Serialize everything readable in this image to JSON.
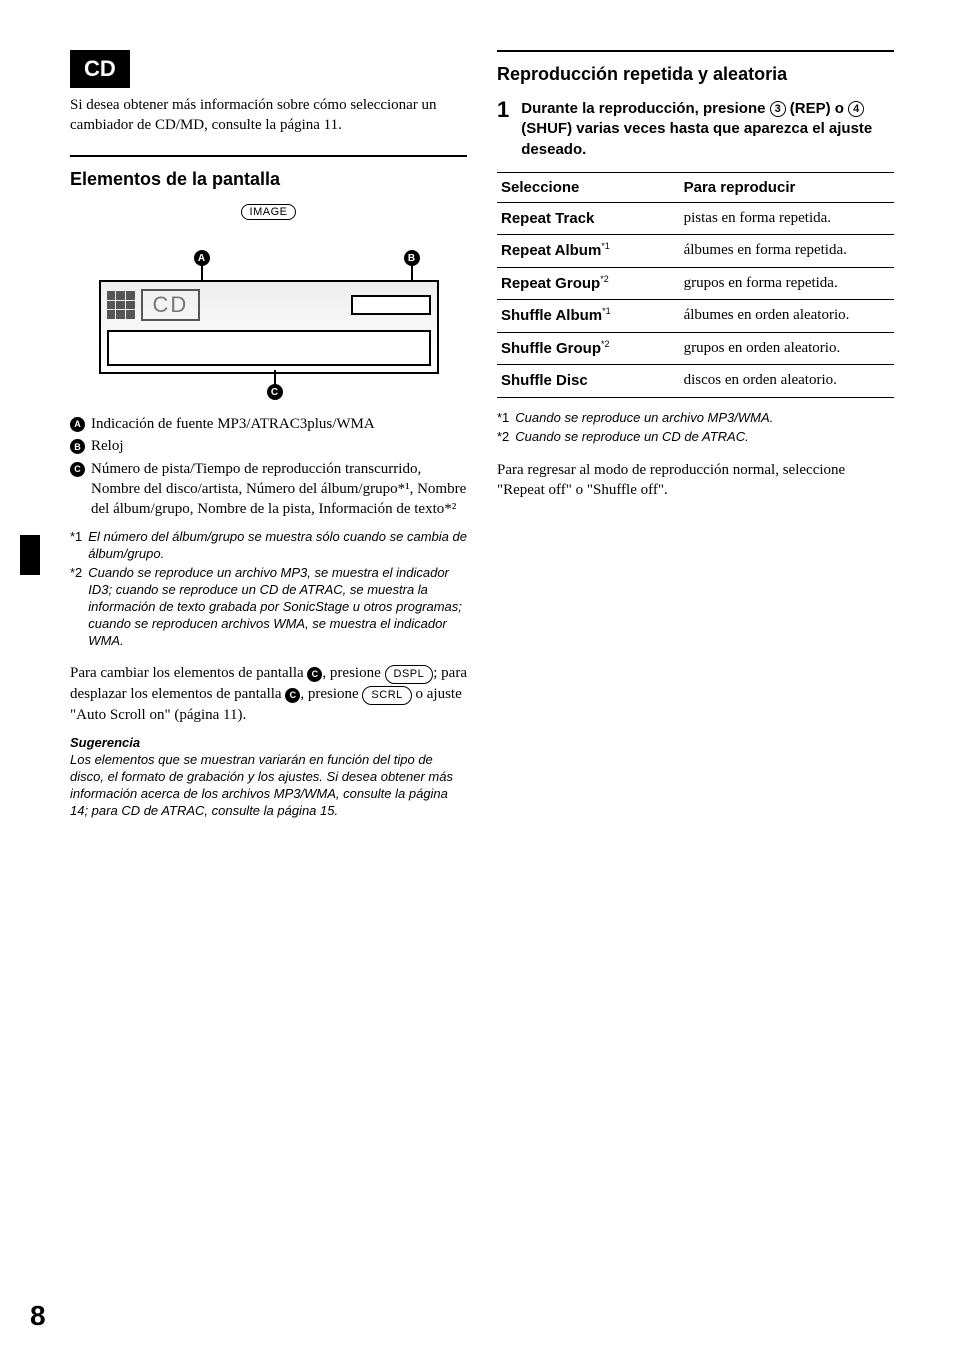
{
  "pageNumber": "8",
  "left": {
    "badge": "CD",
    "intro": "Si desea obtener más información sobre cómo seleccionar un cambiador de CD/MD, consulte la página 11.",
    "subTitle": "Elementos de la pantalla",
    "pill": "IMAGE",
    "displayCD": "CD",
    "callouts": {
      "a": "A",
      "b": "B",
      "c": "C"
    },
    "items": {
      "a": "Indicación de fuente MP3/ATRAC3plus/WMA",
      "b": "Reloj",
      "c": "Número de pista/Tiempo de reproducción transcurrido, Nombre del disco/artista, Número del álbum/grupo*¹, Nombre del álbum/grupo, Nombre de la pista, Información de texto*²"
    },
    "footnotes": {
      "f1": "El número del álbum/grupo se muestra sólo cuando se cambia de álbum/grupo.",
      "f2": "Cuando se reproduce un archivo MP3, se muestra el indicador ID3; cuando se reproduce un CD de ATRAC, se muestra la información de texto grabada por SonicStage u otros programas; cuando se reproducen archivos WMA, se muestra el indicador WMA."
    },
    "changePara": {
      "p1a": "Para cambiar los elementos de pantalla ",
      "p1b": ", presione ",
      "dspl": "DSPL",
      "p1c": "; para desplazar los elementos de pantalla ",
      "p1d": ", presione ",
      "scrl": "SCRL",
      "p1e": " o ajuste \"Auto Scroll on\" (página 11)."
    },
    "tipTitle": "Sugerencia",
    "tipText": "Los elementos que se muestran variarán en función del tipo de disco, el formato de grabación y los ajustes. Si desea obtener más información acerca de los archivos MP3/WMA, consulte la página 14; para CD de ATRAC, consulte la página 15."
  },
  "right": {
    "subTitle": "Reproducción repetida y aleatoria",
    "step": {
      "num": "1",
      "l1": "Durante la reproducción, presione ",
      "n3": "3",
      "rep": " (REP) o ",
      "n4": "4",
      "shuf": " (SHUF) varias veces hasta que aparezca el ajuste deseado."
    },
    "table": {
      "h1": "Seleccione",
      "h2": "Para reproducir",
      "rows": [
        {
          "name": "Repeat Track",
          "sup": "",
          "desc": "pistas en forma repetida."
        },
        {
          "name": "Repeat Album",
          "sup": "*1",
          "desc": "álbumes en forma repetida."
        },
        {
          "name": "Repeat Group",
          "sup": "*2",
          "desc": "grupos en forma repetida."
        },
        {
          "name": "Shuffle Album",
          "sup": "*1",
          "desc": "álbumes en orden aleatorio."
        },
        {
          "name": "Shuffle Group",
          "sup": "*2",
          "desc": "grupos en orden aleatorio."
        },
        {
          "name": "Shuffle Disc",
          "sup": "",
          "desc": "discos en orden aleatorio."
        }
      ]
    },
    "footnotes": {
      "f1": "Cuando se reproduce un archivo MP3/WMA.",
      "f2": "Cuando se reproduce un CD de ATRAC."
    },
    "closing": "Para regresar al modo de reproducción normal, seleccione \"Repeat off\" o \"Shuffle off\"."
  }
}
